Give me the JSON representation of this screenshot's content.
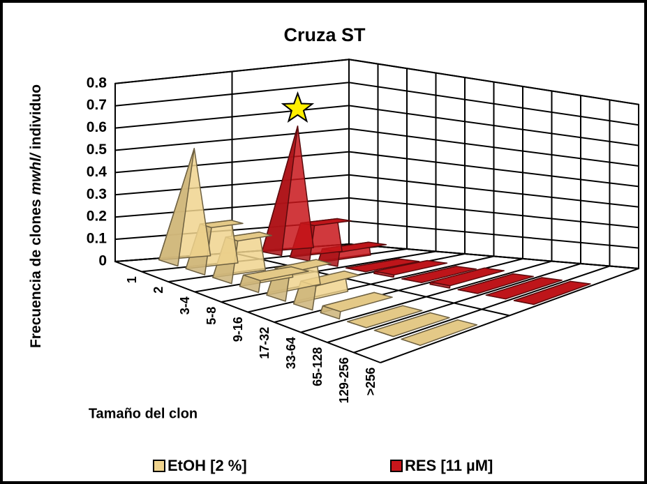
{
  "chart_data": {
    "type": "bar3d",
    "title": "Cruza ST",
    "y_label": [
      "Frecuencia de clones ",
      "mwhl/",
      " individuo"
    ],
    "x_label": "Tamaño del clon",
    "categories": [
      "1",
      "2",
      "3-4",
      "5-8",
      "9-16",
      "17-32",
      "33-64",
      "65-128",
      "129-256",
      ">256"
    ],
    "series": [
      {
        "name": "EtOH [2 %]",
        "color": "#f0d48e",
        "values": [
          0.5,
          0.2,
          0.18,
          0.05,
          0.12,
          0.1,
          0.03,
          0,
          0,
          0
        ]
      },
      {
        "name": "RES [11 µM]",
        "color": "#c8161b",
        "values": [
          0.55,
          0.15,
          0.06,
          0,
          0.01,
          0,
          0.01,
          0,
          0,
          0
        ]
      }
    ],
    "ylim": [
      0,
      0.8
    ],
    "yticks": [
      0,
      0.1,
      0.2,
      0.3,
      0.4,
      0.5,
      0.6,
      0.7,
      0.8
    ],
    "grid": true
  }
}
